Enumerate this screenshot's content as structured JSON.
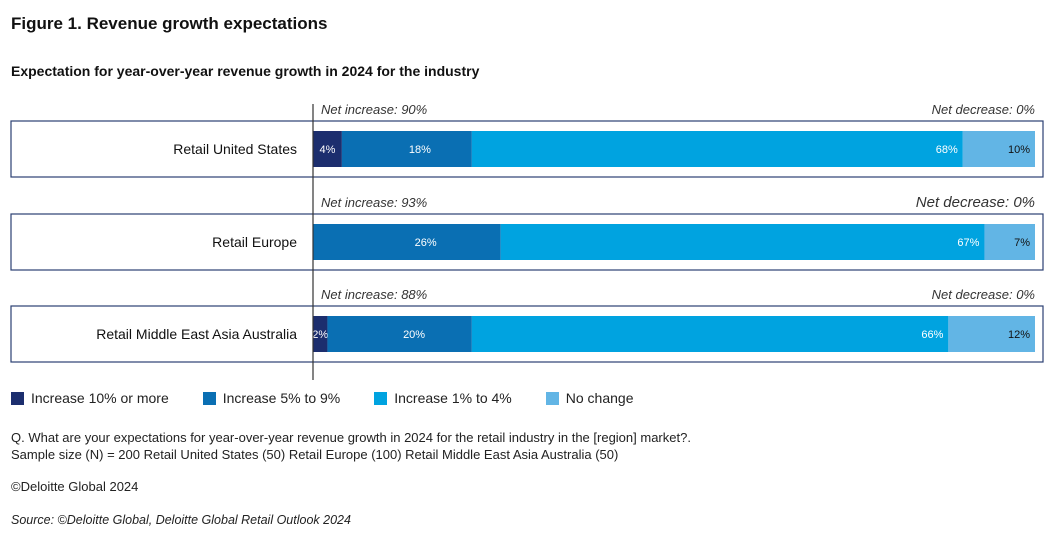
{
  "figure_title": "Figure 1. Revenue growth expectations",
  "subtitle": "Expectation for year-over-year revenue growth in 2024 for the industry",
  "question": "Q. What are your expectations for year-over-year revenue growth in 2024 for the retail industry in the [region] market?.",
  "sample": "Sample size (N) = 200 Retail United States (50)  Retail Europe (100) Retail Middle East Asia Australia (50)",
  "copyright": "©Deloitte Global 2024",
  "source": "Source: ©Deloitte Global, Deloitte Global Retail Outlook 2024",
  "colors": {
    "increase_10_plus": "#1c2e6e",
    "increase_5_9": "#0a6fb3",
    "increase_1_4": "#00a3e0",
    "no_change": "#62b5e5"
  },
  "chart_data": {
    "type": "bar",
    "orientation": "horizontal-stacked",
    "categories": [
      "Retail United States",
      "Retail Europe",
      "Retail Middle East Asia Australia"
    ],
    "series": [
      {
        "name": "Increase 10% or more",
        "values": [
          4,
          0,
          2
        ],
        "labels": [
          "4%",
          "",
          "2%"
        ],
        "color": "#1c2e6e"
      },
      {
        "name": "Increase 5% to 9%",
        "values": [
          18,
          26,
          20
        ],
        "labels": [
          "18%",
          "26%",
          "20%"
        ],
        "color": "#0a6fb3"
      },
      {
        "name": "Increase 1% to 4%",
        "values": [
          68,
          67,
          66
        ],
        "labels": [
          "68%",
          "67%",
          "66%"
        ],
        "color": "#00a3e0"
      },
      {
        "name": "No change",
        "values": [
          10,
          7,
          12
        ],
        "labels": [
          "10%",
          "7%",
          "12%"
        ],
        "color": "#62b5e5"
      }
    ],
    "net_increase": [
      "Net increase: 90%",
      "Net increase: 93%",
      "Net increase: 88%"
    ],
    "net_decrease": [
      "Net decrease: 0%",
      "Net decrease: 0%",
      "Net decrease: 0%"
    ],
    "xlim": [
      0,
      100
    ],
    "legend_position": "bottom-left",
    "grid": false
  }
}
